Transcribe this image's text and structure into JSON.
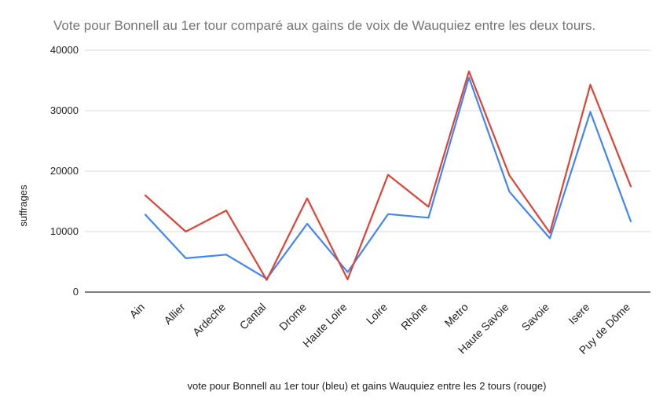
{
  "chart_data": {
    "type": "line",
    "title": "Vote pour Bonnell au 1er tour comparé aux gains de voix de Wauquiez entre les deux tours.",
    "xlabel": "vote pour Bonnell au 1er tour  (bleu) et gains Wauquiez entre les 2 tours (rouge)",
    "ylabel": "suffrages",
    "ylim": [
      0,
      40000
    ],
    "yticks": [
      "0",
      "10000",
      "20000",
      "30000",
      "40000"
    ],
    "categories": [
      "Ain",
      "Allier",
      "Ardeche",
      "Cantal",
      "Drome",
      "Haute Loire",
      "Loire",
      "Rhône",
      "Metro",
      "Haute Savoie",
      "Savoie",
      "Isere",
      "Puy de Dôme"
    ],
    "grid": true,
    "legend": "none",
    "series": [
      {
        "color": "#4285f4",
        "values": [
          12800,
          5600,
          6200,
          2200,
          11300,
          3300,
          12900,
          12300,
          35500,
          16600,
          8900,
          29800,
          11700
        ]
      },
      {
        "color": "#db4437",
        "values": [
          16000,
          10000,
          13500,
          2000,
          15500,
          2100,
          19400,
          14100,
          36500,
          19300,
          9800,
          34300,
          17500
        ]
      }
    ]
  }
}
